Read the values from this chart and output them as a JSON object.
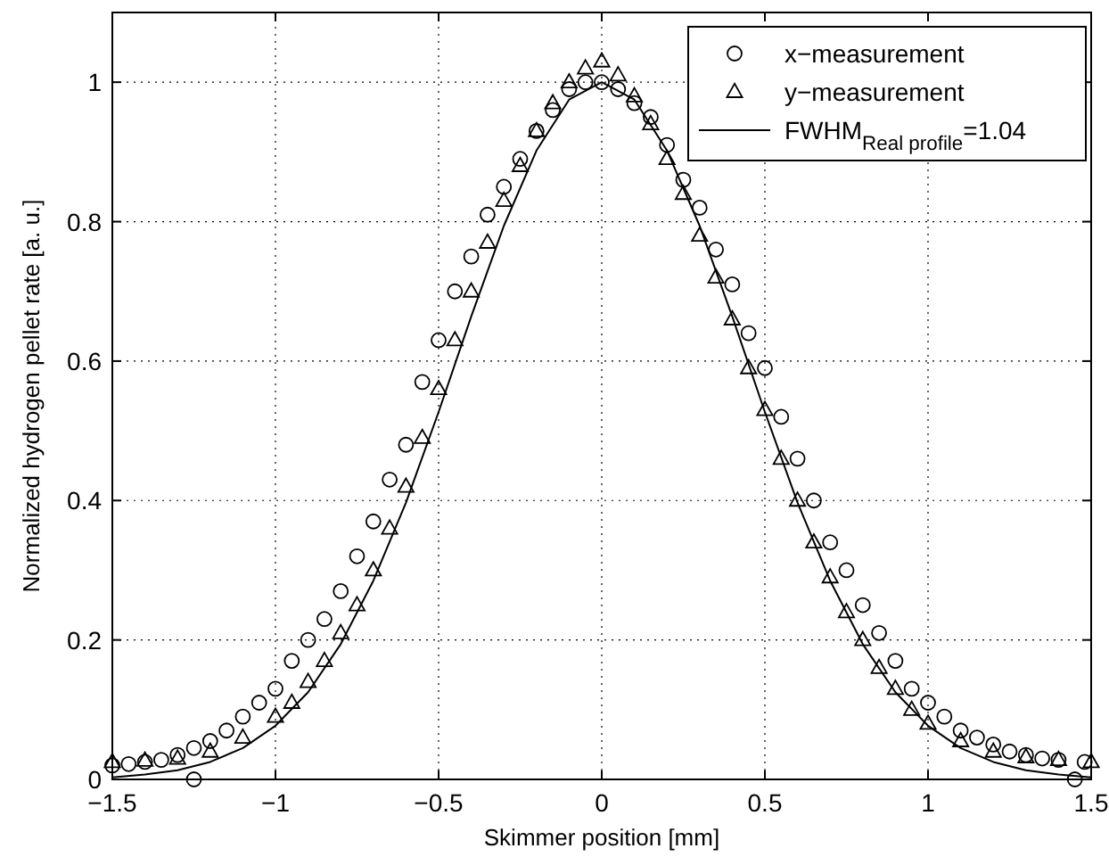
{
  "chart_data": {
    "type": "scatter",
    "xlabel": "Skimmer position [mm]",
    "ylabel": "Normalized hydrogen pellet rate [a. u.]",
    "xlim": [
      -1.5,
      1.5
    ],
    "xticks": [
      {
        "value": -1.5,
        "label": "−1.5"
      },
      {
        "value": -1,
        "label": "−1"
      },
      {
        "value": -0.5,
        "label": "−0.5"
      },
      0,
      0.5,
      1,
      1.5
    ],
    "ylim": [
      0,
      1.1
    ],
    "yticks": [
      0,
      0.2,
      0.4,
      0.6,
      0.8,
      1
    ],
    "grid": true,
    "legend": "top right",
    "series": [
      {
        "name": "x−measurement",
        "marker": "circle",
        "color": "#000000",
        "x": [
          -1.5,
          -1.45,
          -1.4,
          -1.35,
          -1.3,
          -1.25,
          -1.25,
          -1.2,
          -1.15,
          -1.1,
          -1.05,
          -1.0,
          -0.95,
          -0.9,
          -0.85,
          -0.8,
          -0.75,
          -0.7,
          -0.65,
          -0.6,
          -0.55,
          -0.5,
          -0.45,
          -0.4,
          -0.35,
          -0.3,
          -0.25,
          -0.2,
          -0.15,
          -0.1,
          -0.05,
          0,
          0.05,
          0.1,
          0.15,
          0.2,
          0.25,
          0.3,
          0.35,
          0.4,
          0.45,
          0.5,
          0.55,
          0.6,
          0.65,
          0.7,
          0.75,
          0.8,
          0.85,
          0.9,
          0.95,
          1.0,
          1.05,
          1.1,
          1.15,
          1.2,
          1.25,
          1.3,
          1.35,
          1.4,
          1.45,
          1.48
        ],
        "values": [
          0.02,
          0.022,
          0.025,
          0.028,
          0.035,
          0.0,
          0.045,
          0.055,
          0.07,
          0.09,
          0.11,
          0.13,
          0.17,
          0.2,
          0.23,
          0.27,
          0.32,
          0.37,
          0.43,
          0.48,
          0.57,
          0.63,
          0.7,
          0.75,
          0.81,
          0.85,
          0.89,
          0.93,
          0.96,
          0.99,
          1.0,
          1.0,
          0.99,
          0.97,
          0.95,
          0.91,
          0.86,
          0.82,
          0.76,
          0.71,
          0.64,
          0.59,
          0.52,
          0.46,
          0.4,
          0.34,
          0.3,
          0.25,
          0.21,
          0.17,
          0.13,
          0.11,
          0.09,
          0.07,
          0.06,
          0.05,
          0.04,
          0.035,
          0.03,
          0.028,
          0.0,
          0.025
        ]
      },
      {
        "name": "y−measurement",
        "marker": "triangle",
        "color": "#000000",
        "x": [
          -1.5,
          -1.4,
          -1.3,
          -1.2,
          -1.1,
          -1.0,
          -0.95,
          -0.9,
          -0.85,
          -0.8,
          -0.75,
          -0.7,
          -0.65,
          -0.6,
          -0.55,
          -0.5,
          -0.45,
          -0.4,
          -0.35,
          -0.3,
          -0.25,
          -0.2,
          -0.15,
          -0.1,
          -0.05,
          0,
          0.05,
          0.1,
          0.15,
          0.2,
          0.25,
          0.3,
          0.35,
          0.4,
          0.45,
          0.5,
          0.55,
          0.6,
          0.65,
          0.7,
          0.75,
          0.8,
          0.85,
          0.9,
          0.95,
          1.0,
          1.1,
          1.2,
          1.3,
          1.4,
          1.5
        ],
        "values": [
          0.025,
          0.027,
          0.03,
          0.04,
          0.06,
          0.09,
          0.11,
          0.14,
          0.17,
          0.21,
          0.25,
          0.3,
          0.36,
          0.42,
          0.49,
          0.56,
          0.63,
          0.7,
          0.77,
          0.83,
          0.88,
          0.93,
          0.97,
          1.0,
          1.02,
          1.03,
          1.01,
          0.98,
          0.94,
          0.89,
          0.84,
          0.78,
          0.72,
          0.66,
          0.59,
          0.53,
          0.46,
          0.4,
          0.34,
          0.29,
          0.24,
          0.2,
          0.16,
          0.13,
          0.1,
          0.08,
          0.055,
          0.04,
          0.032,
          0.028,
          0.025
        ]
      },
      {
        "name": "FWHM$_{Real profile}$=1.04",
        "type": "line",
        "line_style": "solid",
        "color": "#000000",
        "x": [
          -1.5,
          -1.4,
          -1.3,
          -1.2,
          -1.1,
          -1.0,
          -0.9,
          -0.8,
          -0.7,
          -0.6,
          -0.5,
          -0.4,
          -0.3,
          -0.2,
          -0.1,
          0,
          0.1,
          0.2,
          0.3,
          0.4,
          0.5,
          0.6,
          0.7,
          0.8,
          0.9,
          1.0,
          1.1,
          1.2,
          1.3,
          1.4,
          1.5
        ],
        "values": [
          0.003,
          0.007,
          0.013,
          0.025,
          0.045,
          0.077,
          0.125,
          0.194,
          0.285,
          0.397,
          0.527,
          0.664,
          0.794,
          0.902,
          0.975,
          1,
          0.975,
          0.902,
          0.794,
          0.664,
          0.527,
          0.397,
          0.285,
          0.194,
          0.125,
          0.077,
          0.045,
          0.025,
          0.013,
          0.007,
          0.003
        ]
      }
    ]
  }
}
